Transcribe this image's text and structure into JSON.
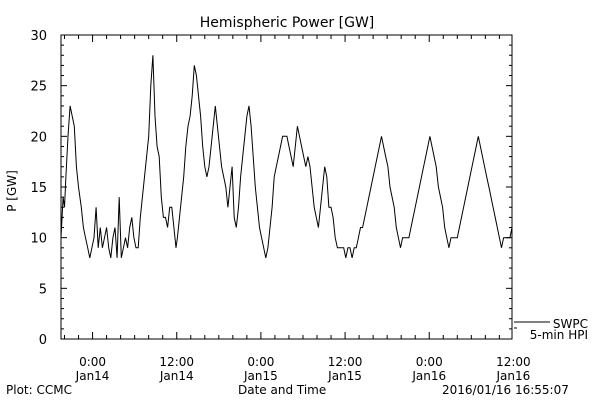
{
  "footer": {
    "left": "Plot: CCMC",
    "center": "Date and Time",
    "right": "2016/01/16 16:55:07"
  },
  "chart_data": {
    "type": "line",
    "title": "Hemispheric Power [GW]",
    "xlabel": "Date and Time",
    "ylabel": "P [GW]",
    "ylim": [
      0,
      30
    ],
    "yticks": [
      0,
      5,
      10,
      15,
      20,
      25,
      30
    ],
    "x_range_hours": [
      -4.5,
      59.8
    ],
    "x_ticks": [
      {
        "hours": 0,
        "time": "0:00",
        "date": "Jan14"
      },
      {
        "hours": 12,
        "time": "12:00",
        "date": "Jan14"
      },
      {
        "hours": 24,
        "time": "0:00",
        "date": "Jan15"
      },
      {
        "hours": 36,
        "time": "12:00",
        "date": "Jan15"
      },
      {
        "hours": 48,
        "time": "0:00",
        "date": "Jan16"
      },
      {
        "hours": 60,
        "time": "12:00",
        "date": "Jan16"
      }
    ],
    "legend": {
      "position": "bottom-right",
      "entries": [
        "SWPC",
        "5-min HPI"
      ]
    },
    "series": [
      {
        "name": "5-min HPI",
        "color": "#000000",
        "x": [
          -4.5,
          -4.2,
          -4.0,
          -3.8,
          -3.5,
          -3.2,
          -2.9,
          -2.6,
          -2.3,
          -2.0,
          -1.6,
          -1.3,
          -1.0,
          -0.7,
          -0.4,
          -0.1,
          0.2,
          0.5,
          0.8,
          1.1,
          1.4,
          1.7,
          2.0,
          2.3,
          2.6,
          2.9,
          3.2,
          3.5,
          3.8,
          4.1,
          4.4,
          4.7,
          5.0,
          5.3,
          5.6,
          5.9,
          6.2,
          6.5,
          6.8,
          7.1,
          7.4,
          7.7,
          8.0,
          8.3,
          8.6,
          8.9,
          9.2,
          9.5,
          9.8,
          10.1,
          10.4,
          10.7,
          11.0,
          11.3,
          11.6,
          11.9,
          12.1,
          12.4,
          12.7,
          13.0,
          13.3,
          13.6,
          13.9,
          14.2,
          14.5,
          14.8,
          15.1,
          15.4,
          15.7,
          16.0,
          16.3,
          16.6,
          16.9,
          17.2,
          17.5,
          17.8,
          18.1,
          18.4,
          18.7,
          19.0,
          19.3,
          19.6,
          19.9,
          20.2,
          20.5,
          20.8,
          21.1,
          21.4,
          21.7,
          22.0,
          22.3,
          22.6,
          22.9,
          23.2,
          23.5,
          23.8,
          24.1,
          24.4,
          24.7,
          25.0,
          25.3,
          25.6,
          25.9,
          26.2,
          26.5,
          26.8,
          27.1,
          27.4,
          27.7,
          28.0,
          28.3,
          28.6,
          28.9,
          29.2,
          29.5,
          29.8,
          30.1,
          30.4,
          30.7,
          31.0,
          31.3,
          31.6,
          31.9,
          32.2,
          32.5,
          32.8,
          33.1,
          33.4,
          33.7,
          34.0,
          34.3,
          34.6,
          34.9,
          35.2,
          35.5,
          35.8,
          36.1,
          36.4,
          36.7,
          37.0,
          37.3,
          37.6,
          37.9,
          38.2,
          38.5,
          38.8,
          39.1,
          39.4,
          39.7,
          40.0,
          40.3,
          40.6,
          40.9,
          41.2,
          41.5,
          41.8,
          42.1,
          42.4,
          42.7,
          43.0,
          43.3,
          43.6,
          43.9,
          44.2,
          44.5,
          44.8,
          45.1,
          45.4,
          45.7,
          46.0,
          46.3,
          46.6,
          46.9,
          47.2,
          47.5,
          47.8,
          48.1,
          48.4,
          48.7,
          49.0,
          49.3,
          49.6,
          49.9,
          50.2,
          50.5,
          50.8,
          51.1,
          51.4,
          51.7,
          52.0,
          52.3,
          52.6,
          52.9,
          53.2,
          53.5,
          53.8,
          54.1,
          54.4,
          54.7,
          55.0,
          55.3,
          55.6,
          55.9,
          56.2,
          56.5,
          56.8,
          57.1,
          57.4,
          57.7,
          58.0,
          58.3,
          58.6,
          58.9,
          59.2,
          59.5,
          59.8
        ],
        "y": [
          10,
          14,
          13,
          16,
          20,
          23,
          22,
          21,
          17,
          15,
          13,
          11,
          10,
          9,
          8,
          9,
          10,
          13,
          9,
          11,
          9,
          10,
          11,
          9,
          8,
          10,
          11,
          8,
          14,
          8,
          9,
          10,
          9,
          11,
          12,
          10,
          9,
          9,
          12,
          14,
          16,
          18,
          20,
          25,
          28,
          22,
          19,
          18,
          14,
          12,
          12,
          11,
          13,
          13,
          11,
          9,
          10,
          12,
          14,
          16,
          19,
          21,
          22,
          24,
          27,
          26,
          24,
          22,
          19,
          17,
          16,
          17,
          19,
          21,
          23,
          21,
          19,
          17,
          16,
          15,
          13,
          15,
          17,
          12,
          11,
          13,
          16,
          18,
          20,
          22,
          23,
          21,
          18,
          15,
          13,
          11,
          10,
          9,
          8,
          9,
          11,
          13,
          16,
          17,
          18,
          19,
          20,
          20,
          20,
          19,
          18,
          17,
          19,
          21,
          20,
          19,
          18,
          17,
          18,
          17,
          15,
          13,
          12,
          11,
          13,
          15,
          17,
          16,
          13,
          13,
          12,
          10,
          9,
          9,
          9,
          9,
          8,
          9,
          9,
          8,
          9,
          9,
          10,
          11,
          11,
          12,
          13,
          14,
          15,
          16,
          17,
          18,
          19,
          20,
          19,
          18,
          17,
          15,
          14,
          13,
          11,
          10,
          9,
          10,
          10,
          10,
          10,
          11,
          12,
          13,
          14,
          15,
          16,
          17,
          18,
          19,
          20,
          19,
          18,
          17,
          15,
          14,
          13,
          11,
          10,
          9,
          10,
          10,
          10,
          10,
          11,
          12,
          13,
          14,
          15,
          16,
          17,
          18,
          19,
          20,
          19,
          18,
          17,
          16,
          15,
          14,
          13,
          12,
          11,
          10,
          9,
          10,
          10,
          10,
          10,
          11
        ]
      }
    ]
  }
}
